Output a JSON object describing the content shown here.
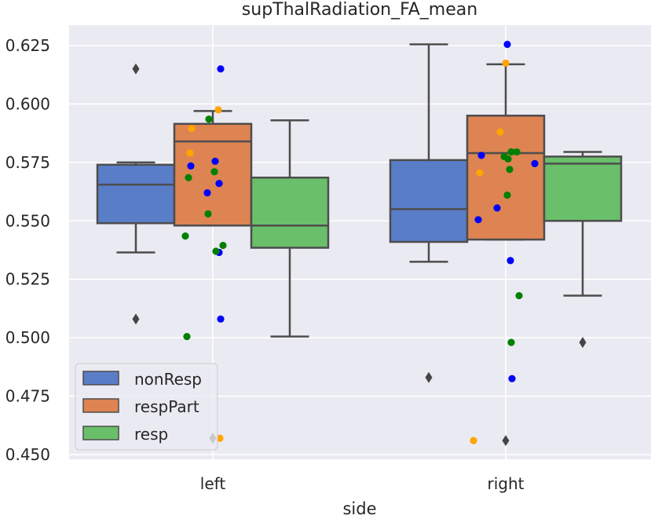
{
  "chart_data": {
    "type": "box",
    "title": "supThalRadiation_FA_mean",
    "xlabel": "side",
    "ylabel": "",
    "categories": [
      "left",
      "right"
    ],
    "ylim": [
      0.448,
      0.635
    ],
    "yticks": [
      "0.450",
      "0.475",
      "0.500",
      "0.525",
      "0.550",
      "0.575",
      "0.600",
      "0.625"
    ],
    "grid": true,
    "legend_position": "lower-left",
    "series": [
      {
        "name": "nonResp",
        "box_color": "#5A7DC8",
        "point_color": "#0000FF",
        "boxes": [
          {
            "category": "left",
            "q1": 0.549,
            "median": 0.5655,
            "q3": 0.574,
            "whisker_low": 0.5365,
            "whisker_high": 0.575,
            "outliers": [
              0.615,
              0.508
            ]
          },
          {
            "category": "right",
            "q1": 0.541,
            "median": 0.555,
            "q3": 0.576,
            "whisker_low": 0.5325,
            "whisker_high": 0.6255,
            "outliers": [
              0.483
            ]
          }
        ],
        "points": [
          {
            "category": "left",
            "jitter": 0.1,
            "y": 0.615
          },
          {
            "category": "left",
            "jitter": -0.28,
            "y": 0.5735
          },
          {
            "category": "left",
            "jitter": 0.03,
            "y": 0.5755
          },
          {
            "category": "left",
            "jitter": 0.08,
            "y": 0.566
          },
          {
            "category": "left",
            "jitter": -0.07,
            "y": 0.562
          },
          {
            "category": "left",
            "jitter": 0.08,
            "y": 0.5365
          },
          {
            "category": "left",
            "jitter": 0.1,
            "y": 0.508
          },
          {
            "category": "right",
            "jitter": 0.02,
            "y": 0.6255
          },
          {
            "category": "right",
            "jitter": -0.31,
            "y": 0.578
          },
          {
            "category": "right",
            "jitter": 0.37,
            "y": 0.5745
          },
          {
            "category": "right",
            "jitter": -0.11,
            "y": 0.5555
          },
          {
            "category": "right",
            "jitter": -0.35,
            "y": 0.5505
          },
          {
            "category": "right",
            "jitter": 0.06,
            "y": 0.533
          },
          {
            "category": "right",
            "jitter": 0.08,
            "y": 0.4825
          }
        ]
      },
      {
        "name": "respPart",
        "box_color": "#DD8452",
        "point_color": "#FFA500",
        "boxes": [
          {
            "category": "left",
            "q1": 0.548,
            "median": 0.584,
            "q3": 0.5915,
            "whisker_low": 0.548,
            "whisker_high": 0.597,
            "outliers": [
              0.457
            ]
          },
          {
            "category": "right",
            "q1": 0.542,
            "median": 0.579,
            "q3": 0.595,
            "whisker_low": 0.542,
            "whisker_high": 0.617,
            "outliers": [
              0.456
            ]
          }
        ],
        "points": [
          {
            "category": "left",
            "jitter": 0.07,
            "y": 0.5975
          },
          {
            "category": "left",
            "jitter": -0.27,
            "y": 0.5895
          },
          {
            "category": "left",
            "jitter": -0.29,
            "y": 0.579
          },
          {
            "category": "left",
            "jitter": 0.09,
            "y": 0.457
          },
          {
            "category": "right",
            "jitter": 0.0,
            "y": 0.6175
          },
          {
            "category": "right",
            "jitter": -0.07,
            "y": 0.588
          },
          {
            "category": "right",
            "jitter": -0.33,
            "y": 0.5705
          },
          {
            "category": "right",
            "jitter": -0.41,
            "y": 0.456
          }
        ]
      },
      {
        "name": "resp",
        "box_color": "#6ABF6A",
        "point_color": "#008000",
        "boxes": [
          {
            "category": "left",
            "q1": 0.5385,
            "median": 0.548,
            "q3": 0.5685,
            "whisker_low": 0.5005,
            "whisker_high": 0.593,
            "outliers": []
          },
          {
            "category": "right",
            "q1": 0.55,
            "median": 0.5745,
            "q3": 0.5775,
            "whisker_low": 0.518,
            "whisker_high": 0.5795,
            "outliers": [
              0.498
            ]
          }
        ],
        "points": [
          {
            "category": "left",
            "jitter": -0.05,
            "y": 0.5935
          },
          {
            "category": "left",
            "jitter": 0.02,
            "y": 0.571
          },
          {
            "category": "left",
            "jitter": -0.31,
            "y": 0.5685
          },
          {
            "category": "left",
            "jitter": -0.06,
            "y": 0.553
          },
          {
            "category": "left",
            "jitter": -0.35,
            "y": 0.5435
          },
          {
            "category": "left",
            "jitter": 0.13,
            "y": 0.5395
          },
          {
            "category": "left",
            "jitter": 0.04,
            "y": 0.537
          },
          {
            "category": "left",
            "jitter": -0.33,
            "y": 0.5005
          },
          {
            "category": "right",
            "jitter": 0.07,
            "y": 0.5795
          },
          {
            "category": "right",
            "jitter": 0.14,
            "y": 0.5795
          },
          {
            "category": "right",
            "jitter": -0.02,
            "y": 0.5775
          },
          {
            "category": "right",
            "jitter": 0.03,
            "y": 0.5765
          },
          {
            "category": "right",
            "jitter": 0.05,
            "y": 0.572
          },
          {
            "category": "right",
            "jitter": 0.02,
            "y": 0.561
          },
          {
            "category": "right",
            "jitter": 0.17,
            "y": 0.518
          },
          {
            "category": "right",
            "jitter": 0.07,
            "y": 0.498
          }
        ]
      }
    ]
  }
}
